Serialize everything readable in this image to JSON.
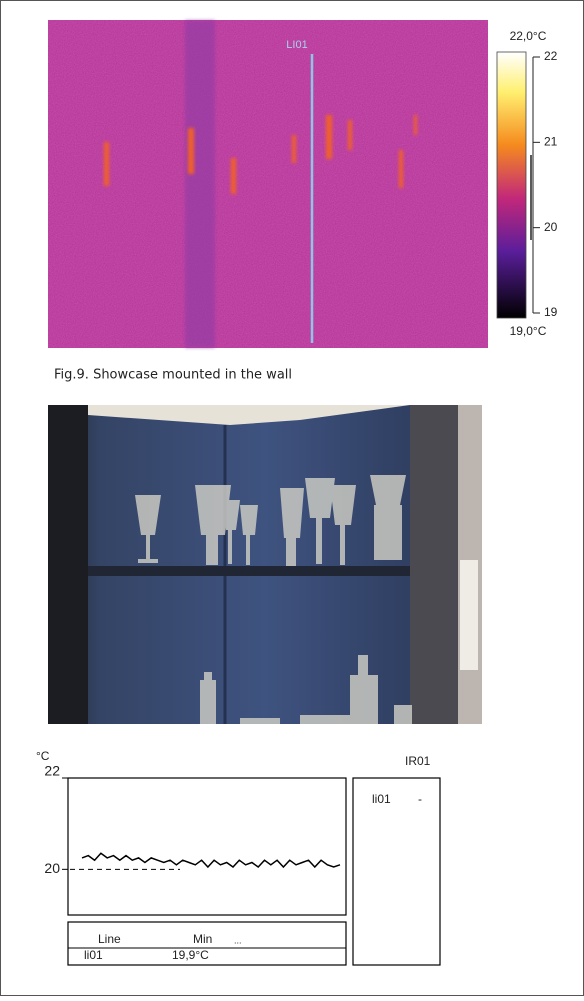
{
  "thermal_image": {
    "line_label": "LI01",
    "scale_max_label": "22,0°C",
    "scale_min_label": "19,0°C",
    "scale_lim": [
      19,
      22
    ],
    "scale_ticks": [
      22,
      21,
      20,
      19
    ]
  },
  "caption": "Fig.9. Showcase mounted in the wall",
  "plot": {
    "unit": "°C",
    "ylim": [
      19,
      22
    ],
    "yticks": [
      22,
      20
    ],
    "values": [
      20.25,
      20.3,
      20.2,
      20.35,
      20.25,
      20.3,
      20.2,
      20.3,
      20.2,
      20.25,
      20.15,
      20.25,
      20.2,
      20.15,
      20.2,
      20.1,
      20.2,
      20.15,
      20.1,
      20.2,
      20.05,
      20.2,
      20.1,
      20.15,
      20.05,
      20.2,
      20.1,
      20.15,
      20.05,
      20.2,
      20.1,
      20.2,
      20.05,
      20.2,
      20.1,
      20.15,
      20.2,
      20.05,
      20.2,
      20.1,
      20.05,
      20.1
    ],
    "color": "#000000"
  },
  "legend_box": {
    "title": "IR01",
    "item": "li01",
    "value": "-"
  },
  "table": {
    "header": [
      "Line",
      "Min",
      "..."
    ],
    "rows": [
      [
        "li01",
        "19,9°C"
      ]
    ]
  }
}
